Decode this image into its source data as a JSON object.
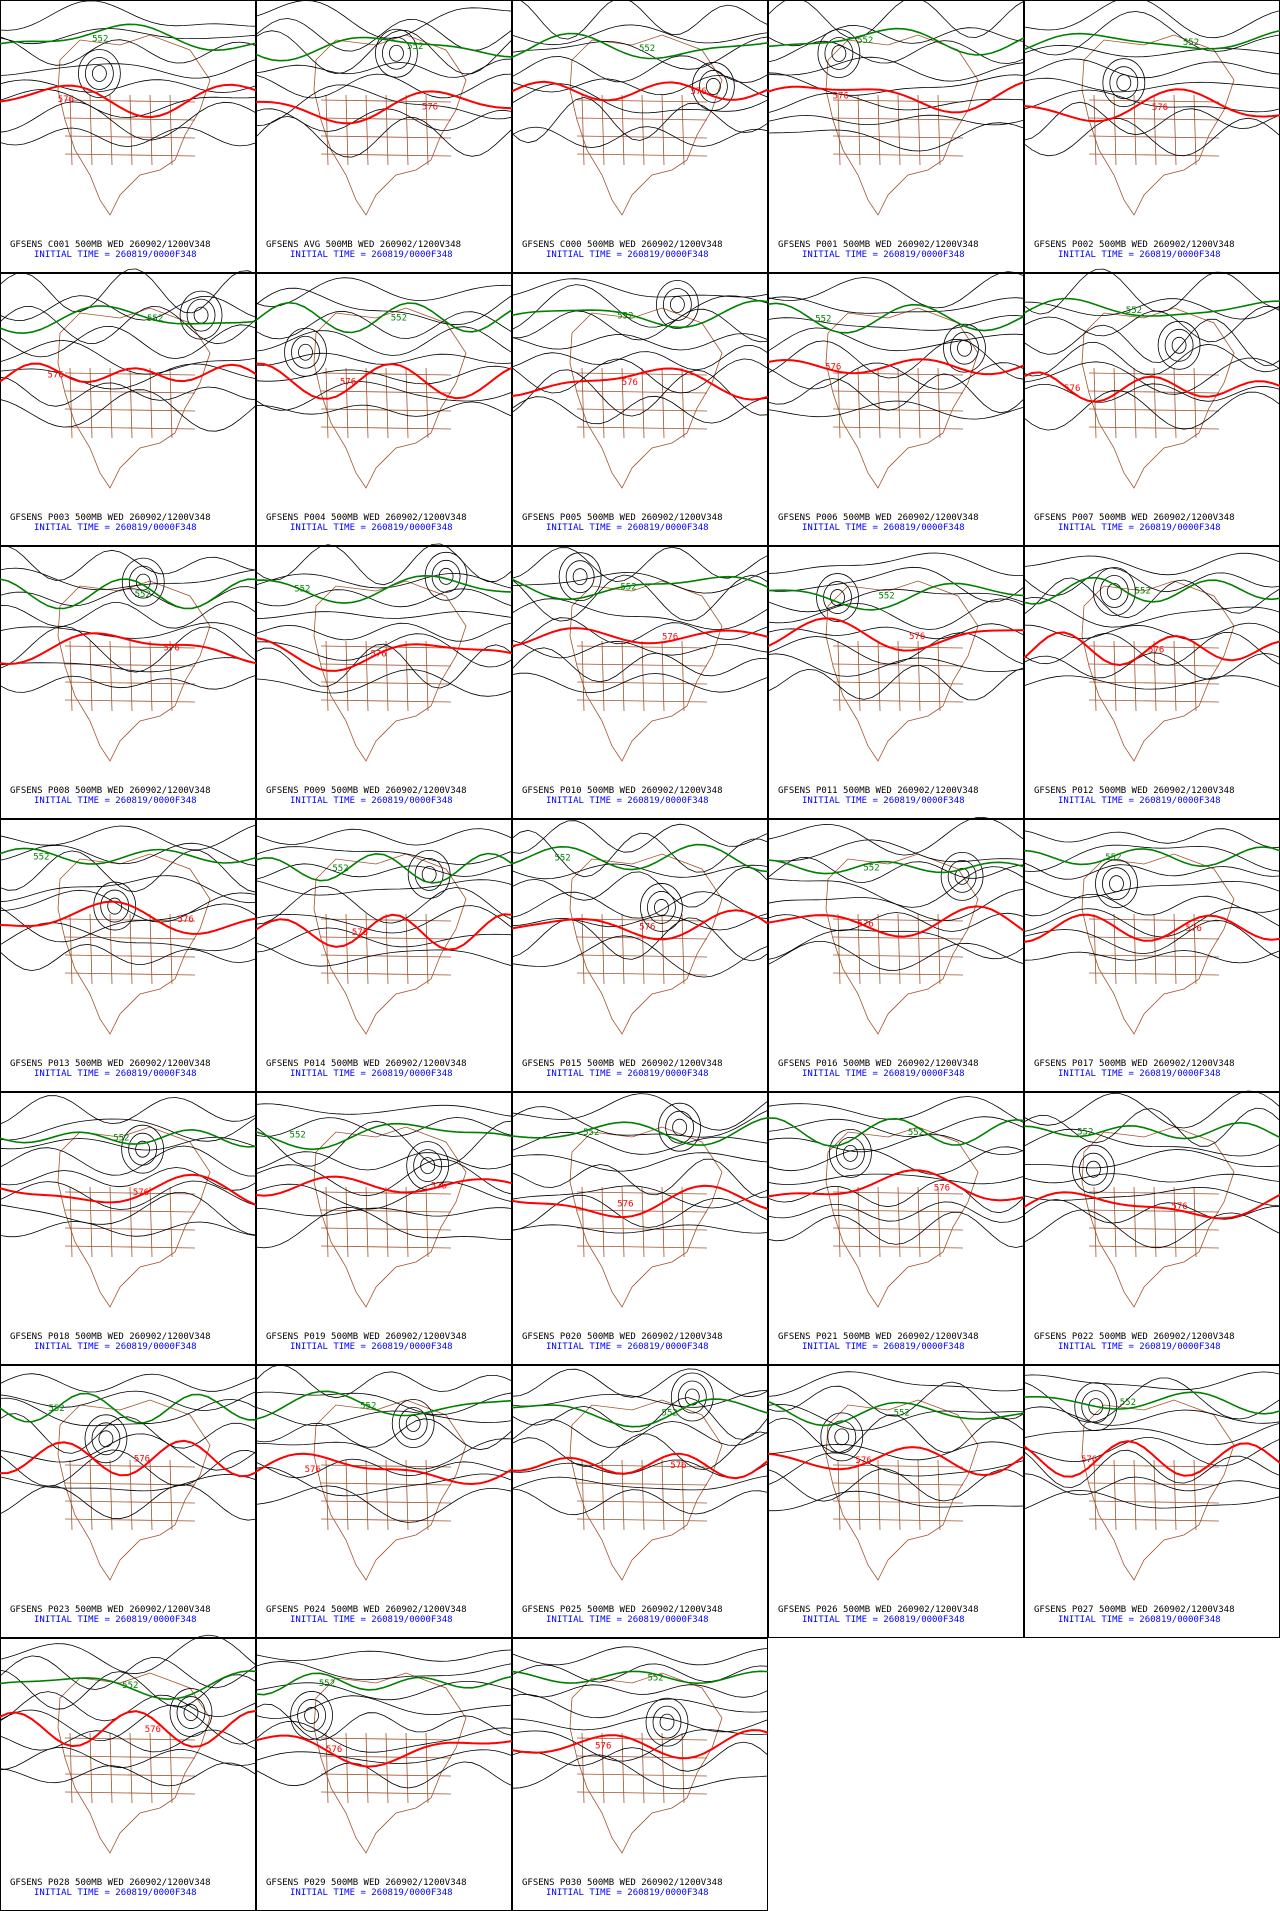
{
  "panels": [
    {
      "title": "GFSENS C001 500MB WED 260902/1200V348",
      "init": "INITIAL TIME = 260819/0000F348",
      "contour_labels": [
        "552",
        "576"
      ]
    },
    {
      "title": "GFSENS AVG 500MB WED 260902/1200V348",
      "init": "INITIAL TIME = 260819/0000F348",
      "contour_labels": [
        "552",
        "576"
      ]
    },
    {
      "title": "GFSENS C000 500MB WED 260902/1200V348",
      "init": "INITIAL TIME = 260819/0000F348",
      "contour_labels": [
        "552",
        "576"
      ]
    },
    {
      "title": "GFSENS P001 500MB WED 260902/1200V348",
      "init": "INITIAL TIME = 260819/0000F348",
      "contour_labels": [
        "552",
        "576"
      ]
    },
    {
      "title": "GFSENS P002 500MB WED 260902/1200V348",
      "init": "INITIAL TIME = 260819/0000F348",
      "contour_labels": [
        "552",
        "576"
      ]
    },
    {
      "title": "GFSENS P003 500MB WED 260902/1200V348",
      "init": "INITIAL TIME = 260819/0000F348",
      "contour_labels": [
        "552",
        "576"
      ]
    },
    {
      "title": "GFSENS P004 500MB WED 260902/1200V348",
      "init": "INITIAL TIME = 260819/0000F348",
      "contour_labels": [
        "552",
        "576"
      ]
    },
    {
      "title": "GFSENS P005 500MB WED 260902/1200V348",
      "init": "INITIAL TIME = 260819/0000F348",
      "contour_labels": [
        "552",
        "576"
      ]
    },
    {
      "title": "GFSENS P006 500MB WED 260902/1200V348",
      "init": "INITIAL TIME = 260819/0000F348",
      "contour_labels": [
        "552",
        "576"
      ]
    },
    {
      "title": "GFSENS P007 500MB WED 260902/1200V348",
      "init": "INITIAL TIME = 260819/0000F348",
      "contour_labels": [
        "552",
        "576"
      ]
    },
    {
      "title": "GFSENS P008 500MB WED 260902/1200V348",
      "init": "INITIAL TIME = 260819/0000F348",
      "contour_labels": [
        "552",
        "576"
      ]
    },
    {
      "title": "GFSENS P009 500MB WED 260902/1200V348",
      "init": "INITIAL TIME = 260819/0000F348",
      "contour_labels": [
        "552",
        "576"
      ]
    },
    {
      "title": "GFSENS P010 500MB WED 260902/1200V348",
      "init": "INITIAL TIME = 260819/0000F348",
      "contour_labels": [
        "552",
        "576"
      ]
    },
    {
      "title": "GFSENS P011 500MB WED 260902/1200V348",
      "init": "INITIAL TIME = 260819/0000F348",
      "contour_labels": [
        "552",
        "576"
      ]
    },
    {
      "title": "GFSENS P012 500MB WED 260902/1200V348",
      "init": "INITIAL TIME = 260819/0000F348",
      "contour_labels": [
        "552",
        "576"
      ]
    },
    {
      "title": "GFSENS P013 500MB WED 260902/1200V348",
      "init": "INITIAL TIME = 260819/0000F348",
      "contour_labels": [
        "552",
        "576"
      ]
    },
    {
      "title": "GFSENS P014 500MB WED 260902/1200V348",
      "init": "INITIAL TIME = 260819/0000F348",
      "contour_labels": [
        "552",
        "576"
      ]
    },
    {
      "title": "GFSENS P015 500MB WED 260902/1200V348",
      "init": "INITIAL TIME = 260819/0000F348",
      "contour_labels": [
        "552",
        "576"
      ]
    },
    {
      "title": "GFSENS P016 500MB WED 260902/1200V348",
      "init": "INITIAL TIME = 260819/0000F348",
      "contour_labels": [
        "552",
        "576"
      ]
    },
    {
      "title": "GFSENS P017 500MB WED 260902/1200V348",
      "init": "INITIAL TIME = 260819/0000F348",
      "contour_labels": [
        "552",
        "576"
      ]
    },
    {
      "title": "GFSENS P018 500MB WED 260902/1200V348",
      "init": "INITIAL TIME = 260819/0000F348",
      "contour_labels": [
        "552",
        "576"
      ]
    },
    {
      "title": "GFSENS P019 500MB WED 260902/1200V348",
      "init": "INITIAL TIME = 260819/0000F348",
      "contour_labels": [
        "552",
        "576"
      ]
    },
    {
      "title": "GFSENS P020 500MB WED 260902/1200V348",
      "init": "INITIAL TIME = 260819/0000F348",
      "contour_labels": [
        "552",
        "576"
      ]
    },
    {
      "title": "GFSENS P021 500MB WED 260902/1200V348",
      "init": "INITIAL TIME = 260819/0000F348",
      "contour_labels": [
        "552",
        "576"
      ]
    },
    {
      "title": "GFSENS P022 500MB WED 260902/1200V348",
      "init": "INITIAL TIME = 260819/0000F348",
      "contour_labels": [
        "552",
        "576"
      ]
    },
    {
      "title": "GFSENS P023 500MB WED 260902/1200V348",
      "init": "INITIAL TIME = 260819/0000F348",
      "contour_labels": [
        "552",
        "576"
      ]
    },
    {
      "title": "GFSENS P024 500MB WED 260902/1200V348",
      "init": "INITIAL TIME = 260819/0000F348",
      "contour_labels": [
        "552",
        "576"
      ]
    },
    {
      "title": "GFSENS P025 500MB WED 260902/1200V348",
      "init": "INITIAL TIME = 260819/0000F348",
      "contour_labels": [
        "552",
        "576"
      ]
    },
    {
      "title": "GFSENS P026 500MB WED 260902/1200V348",
      "init": "INITIAL TIME = 260819/0000F348",
      "contour_labels": [
        "552",
        "576"
      ]
    },
    {
      "title": "GFSENS P027 500MB WED 260902/1200V348",
      "init": "INITIAL TIME = 260819/0000F348",
      "contour_labels": [
        "552",
        "576"
      ]
    },
    {
      "title": "GFSENS P028 500MB WED 260902/1200V348",
      "init": "INITIAL TIME = 260819/0000F348",
      "contour_labels": [
        "552",
        "576"
      ]
    },
    {
      "title": "GFSENS P029 500MB WED 260902/1200V348",
      "init": "INITIAL TIME = 260819/0000F348",
      "contour_labels": [
        "552",
        "576"
      ]
    },
    {
      "title": "GFSENS P030 500MB WED 260902/1200V348",
      "init": "INITIAL TIME = 260819/0000F348",
      "contour_labels": [
        "552",
        "576"
      ]
    }
  ]
}
